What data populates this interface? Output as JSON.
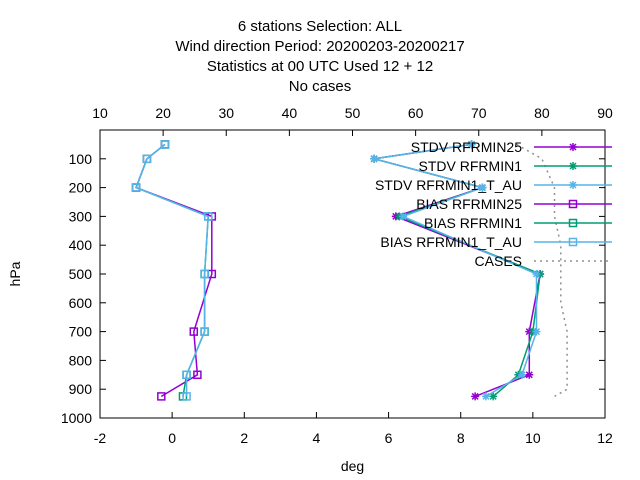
{
  "titles": [
    "6 stations Selection: ALL",
    "Wind direction  Period: 20200203-20200217",
    "Statistics at 00 UTC  Used  12 + 12",
    "No cases"
  ],
  "chart_data": {
    "type": "line",
    "xlabel": "deg",
    "ylabel": "hPa",
    "xlim": [
      -2,
      12
    ],
    "ylim": [
      1000,
      0
    ],
    "y_reversed": true,
    "x2lim": [
      10,
      90
    ],
    "xticks": [
      "-2",
      "0",
      "2",
      "4",
      "6",
      "8",
      "10",
      "12"
    ],
    "x2ticks": [
      "10",
      "20",
      "30",
      "40",
      "50",
      "60",
      "70",
      "80",
      "90"
    ],
    "yticks": [
      "100",
      "200",
      "300",
      "400",
      "500",
      "600",
      "700",
      "800",
      "900",
      "1000"
    ],
    "legend_position": "top-right",
    "grid": false,
    "series": [
      {
        "name": "STDV RFRMIN25",
        "color": "#9400d3",
        "marker": "star",
        "dash": false,
        "points": [
          [
            8.3,
            50
          ],
          [
            5.6,
            100
          ],
          [
            8.6,
            200
          ],
          [
            6.2,
            300
          ],
          [
            10.2,
            500
          ],
          [
            9.9,
            700
          ],
          [
            9.9,
            850
          ],
          [
            8.4,
            925
          ]
        ]
      },
      {
        "name": "STDV RFRMIN1",
        "color": "#009e73",
        "marker": "star",
        "dash": false,
        "points": [
          [
            8.3,
            50
          ],
          [
            5.6,
            100
          ],
          [
            8.6,
            200
          ],
          [
            6.3,
            300
          ],
          [
            10.2,
            500
          ],
          [
            10.0,
            700
          ],
          [
            9.6,
            850
          ],
          [
            8.9,
            925
          ]
        ]
      },
      {
        "name": "STDV RFRMIN1_T_AU",
        "color": "#56b4e9",
        "marker": "star",
        "dash": false,
        "points": [
          [
            8.3,
            50
          ],
          [
            5.6,
            100
          ],
          [
            8.6,
            200
          ],
          [
            6.4,
            300
          ],
          [
            10.1,
            500
          ],
          [
            10.1,
            700
          ],
          [
            9.7,
            850
          ],
          [
            8.7,
            925
          ]
        ]
      },
      {
        "name": "BIAS RFRMIN25",
        "color": "#9400d3",
        "marker": "square",
        "dash": false,
        "points": [
          [
            -0.2,
            50
          ],
          [
            -0.7,
            100
          ],
          [
            -1.0,
            200
          ],
          [
            1.1,
            300
          ],
          [
            1.1,
            500
          ],
          [
            0.6,
            700
          ],
          [
            0.7,
            850
          ],
          [
            -0.3,
            925
          ]
        ]
      },
      {
        "name": "BIAS RFRMIN1",
        "color": "#009e73",
        "marker": "square",
        "dash": false,
        "points": [
          [
            -0.2,
            50
          ],
          [
            -0.7,
            100
          ],
          [
            -1.0,
            200
          ],
          [
            1.0,
            300
          ],
          [
            0.9,
            500
          ],
          [
            0.9,
            700
          ],
          [
            0.4,
            850
          ],
          [
            0.3,
            925
          ]
        ]
      },
      {
        "name": "BIAS RFRMIN1_T_AU",
        "color": "#56b4e9",
        "marker": "square",
        "dash": false,
        "points": [
          [
            -0.2,
            50
          ],
          [
            -0.7,
            100
          ],
          [
            -1.0,
            200
          ],
          [
            1.0,
            300
          ],
          [
            0.9,
            500
          ],
          [
            0.9,
            700
          ],
          [
            0.4,
            850
          ],
          [
            0.4,
            925
          ]
        ]
      },
      {
        "name": "CASES",
        "color": "#909090",
        "marker": "none",
        "dash": true,
        "axis": "x2",
        "points": [
          [
            76,
            50
          ],
          [
            80,
            100
          ],
          [
            82,
            200
          ],
          [
            82,
            300
          ],
          [
            83,
            400
          ],
          [
            83,
            500
          ],
          [
            83,
            600
          ],
          [
            84,
            700
          ],
          [
            84,
            800
          ],
          [
            84,
            900
          ],
          [
            82,
            925
          ]
        ]
      }
    ]
  }
}
